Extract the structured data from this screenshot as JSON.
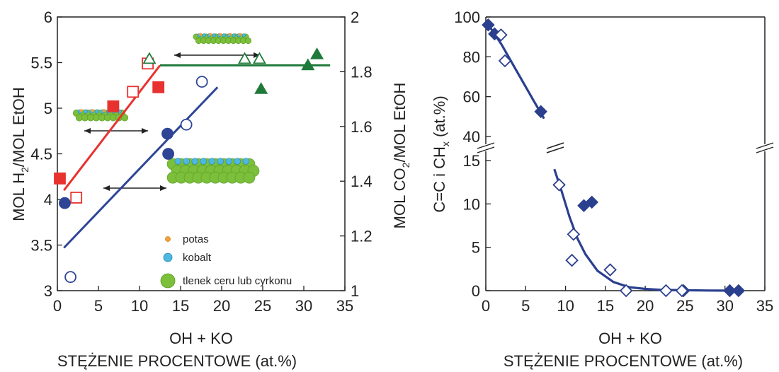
{
  "colors": {
    "red": "#e8322f",
    "blue": "#2e4596",
    "green": "#1f7a3a",
    "navy": "#2b3f8f",
    "potas": "#f5a13a",
    "kobalt": "#4db8e0",
    "tlenek": "#7bbf3a"
  },
  "chart_data": [
    {
      "type": "scatter",
      "xlabel": "OH + KO",
      "xlabel2": "STĘŻENIE PROCENTOWE (at.%)",
      "ylabel": "MOL H2/MOL EtOH",
      "ylabel_prefix": "MOL H",
      "ylabel_sub": "2",
      "ylabel_suffix": "/MOL EtOH",
      "y2label": "MOL CO2/MOL EtOH",
      "y2label_prefix": "MOL CO",
      "y2label_sub": "2",
      "y2label_suffix": "/MOL EtOH",
      "xlim": [
        0,
        35
      ],
      "ylim": [
        3,
        6
      ],
      "y2lim": [
        1,
        2
      ],
      "x_ticks": [
        "0",
        "5",
        "10",
        "15",
        "20",
        "25",
        "30",
        "35"
      ],
      "y_ticks": [
        "3",
        "3.5",
        "4",
        "4.5",
        "5",
        "5.5",
        "6"
      ],
      "y2_ticks": [
        "1",
        "1.2",
        "1.4",
        "1.6",
        "1.8",
        "2"
      ],
      "series": [
        {
          "marker": "square-filled",
          "color": "red",
          "x": [
            0.3,
            6.8,
            12.3
          ],
          "y": [
            4.23,
            5.02,
            5.23
          ]
        },
        {
          "marker": "square-open",
          "color": "red",
          "x": [
            2.3,
            9.2,
            11.0
          ],
          "y": [
            4.02,
            5.18,
            5.49
          ]
        },
        {
          "marker": "circle-filled",
          "color": "blue",
          "x": [
            0.9,
            13.4,
            13.5
          ],
          "y": [
            3.96,
            4.72,
            4.5
          ]
        },
        {
          "marker": "circle-open",
          "color": "blue",
          "x": [
            1.6,
            15.7,
            17.6
          ],
          "y": [
            3.15,
            4.82,
            5.29
          ]
        },
        {
          "marker": "triangle-filled",
          "color": "green",
          "x": [
            24.8,
            30.5,
            31.6
          ],
          "y": [
            5.21,
            5.47,
            5.59
          ]
        },
        {
          "marker": "triangle-open",
          "color": "green",
          "x": [
            11.2,
            22.8,
            24.6
          ],
          "y": [
            5.54,
            5.54,
            5.54
          ]
        }
      ],
      "fit_lines": [
        {
          "color": "red",
          "x": [
            0.8,
            12.5
          ],
          "y": [
            4.1,
            5.47
          ]
        },
        {
          "color": "green",
          "x": [
            12.5,
            33.2
          ],
          "y": [
            5.47,
            5.47
          ]
        },
        {
          "color": "blue",
          "x": [
            0.8,
            19.5
          ],
          "y": [
            3.47,
            5.23
          ]
        }
      ],
      "legend": [
        {
          "label": "potas",
          "color": "potas"
        },
        {
          "label": "kobalt",
          "color": "kobalt"
        },
        {
          "label": "tlenek ceru lub cyrkonu",
          "color": "tlenek"
        }
      ]
    },
    {
      "type": "scatter",
      "xlabel": "OH + KO",
      "xlabel2": "STĘŻENIE PROCENTOWE (at.%)",
      "ylabel": "C=C i CHx (at.%)",
      "ylabel_prefix": "C=C i CH",
      "ylabel_sub": "x",
      "ylabel_suffix": " (at.%)",
      "xlim": [
        0,
        35
      ],
      "ylim_lower": [
        0,
        15
      ],
      "ylim_upper": [
        40,
        100
      ],
      "x_ticks": [
        "0",
        "5",
        "10",
        "15",
        "20",
        "25",
        "30",
        "35"
      ],
      "y_ticks_lower": [
        "0",
        "5",
        "10",
        "15"
      ],
      "y_ticks_upper": [
        "40",
        "60",
        "80",
        "100"
      ],
      "series": [
        {
          "marker": "diamond-filled",
          "color": "navy",
          "x": [
            0.3,
            1.1,
            6.9,
            12.3,
            13.3,
            24.8,
            30.6,
            31.7
          ],
          "y": [
            96,
            91.5,
            52.5,
            9.8,
            10.2,
            0,
            0,
            0
          ]
        },
        {
          "marker": "diamond-open",
          "color": "navy",
          "x": [
            1.9,
            2.4,
            9.2,
            11.0,
            10.8,
            15.6,
            17.6,
            22.6,
            24.6
          ],
          "y": [
            91,
            78,
            12.2,
            6.5,
            3.5,
            2.4,
            0,
            0,
            0
          ]
        }
      ],
      "fit_curve": {
        "color": "navy",
        "x": [
          0,
          2,
          4,
          6,
          7.3,
          8.6,
          9.5,
          10.5,
          11.5,
          12.5,
          14,
          16,
          18,
          20,
          22,
          25,
          28,
          32
        ],
        "y": [
          98,
          86,
          72,
          58,
          49,
          14,
          11.5,
          8.5,
          6,
          4.2,
          2.3,
          1.0,
          0.4,
          0.2,
          0.1,
          0.05,
          0.02,
          0
        ]
      }
    }
  ]
}
